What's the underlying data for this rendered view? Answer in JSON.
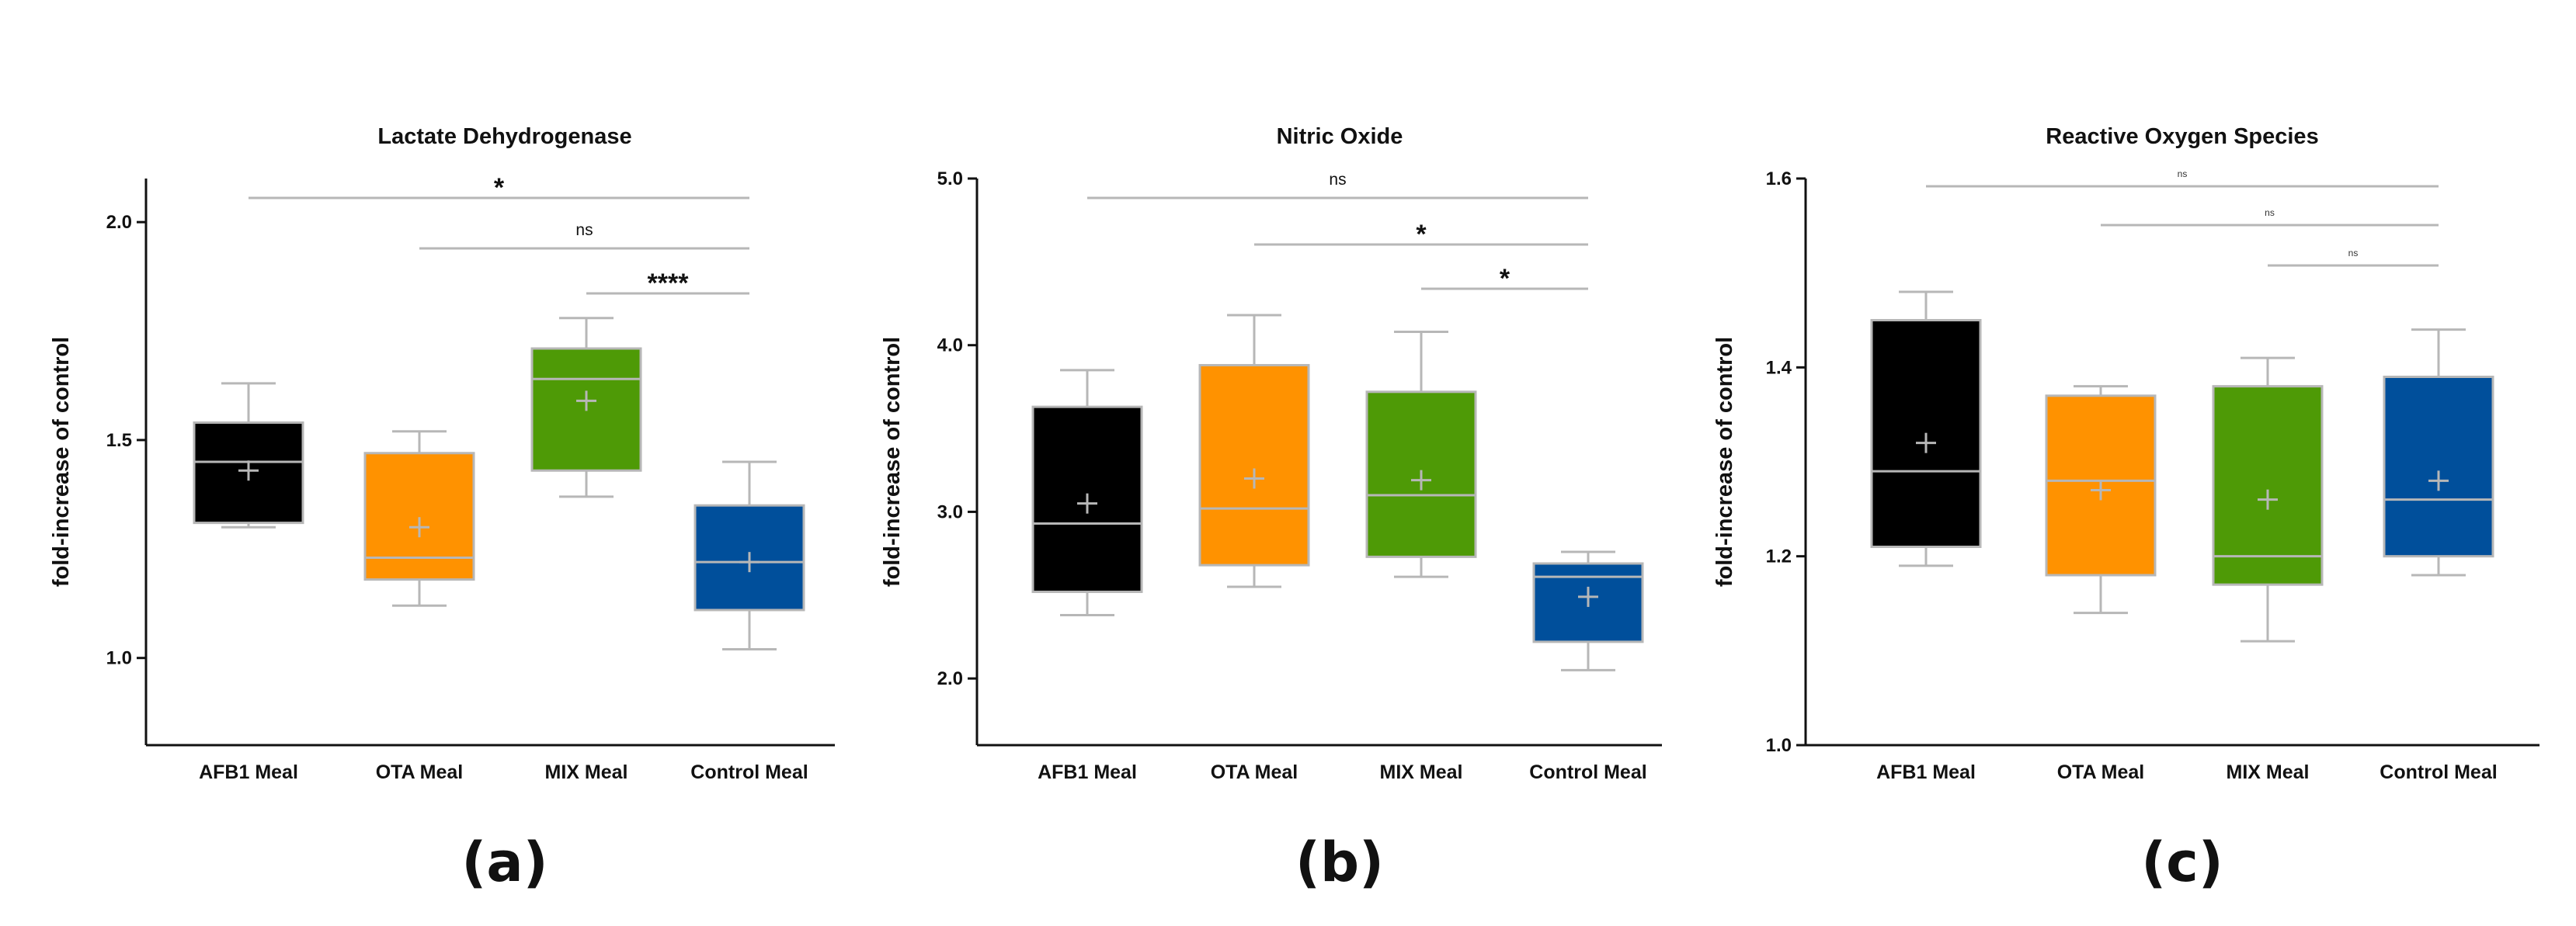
{
  "chart_data": [
    {
      "type": "box",
      "panel_label": "(a)",
      "title": "Lactate Dehydrogenase",
      "ylabel": "fold-increase of control",
      "ylim": [
        0.8,
        2.1
      ],
      "yticks": [
        1.0,
        1.5,
        2.0
      ],
      "ytick_labels": [
        "1.0",
        "1.5",
        "2.0"
      ],
      "categories": [
        "AFB1 Meal",
        "OTA Meal",
        "MIX Meal",
        "Control Meal"
      ],
      "colors": [
        "#000000",
        "#FF9200",
        "#4E9A06",
        "#004F9B"
      ],
      "boxes": [
        {
          "min": 1.3,
          "q1": 1.31,
          "median": 1.45,
          "q3": 1.54,
          "max": 1.63,
          "mean": 1.43
        },
        {
          "min": 1.12,
          "q1": 1.18,
          "median": 1.23,
          "q3": 1.47,
          "max": 1.52,
          "mean": 1.3
        },
        {
          "min": 1.37,
          "q1": 1.43,
          "median": 1.64,
          "q3": 1.71,
          "max": 1.78,
          "mean": 1.59
        },
        {
          "min": 1.02,
          "q1": 1.11,
          "median": 1.22,
          "q3": 1.35,
          "max": 1.45,
          "mean": 1.22
        }
      ],
      "comparisons": [
        {
          "from": 0,
          "to": 3,
          "label": "*",
          "level": 1.05
        },
        {
          "from": 1,
          "to": 3,
          "label": "ns",
          "level": 0.65
        },
        {
          "from": 2,
          "to": 3,
          "label": "****",
          "level": 0.25
        }
      ]
    },
    {
      "type": "box",
      "panel_label": "(b)",
      "title": "Nitric Oxide",
      "ylabel": "fold-increase of control",
      "ylim": [
        1.6,
        5.0
      ],
      "yticks": [
        2.0,
        3.0,
        4.0,
        5.0
      ],
      "ytick_labels": [
        "2.0",
        "3.0",
        "4.0",
        "5.0"
      ],
      "categories": [
        "AFB1 Meal",
        "OTA Meal",
        "MIX Meal",
        "Control Meal"
      ],
      "colors": [
        "#000000",
        "#FF9200",
        "#4E9A06",
        "#004F9B"
      ],
      "boxes": [
        {
          "min": 2.38,
          "q1": 2.52,
          "median": 2.93,
          "q3": 3.63,
          "max": 3.85,
          "mean": 3.05
        },
        {
          "min": 2.55,
          "q1": 2.68,
          "median": 3.02,
          "q3": 3.88,
          "max": 4.18,
          "mean": 3.2
        },
        {
          "min": 2.61,
          "q1": 2.73,
          "median": 3.1,
          "q3": 3.72,
          "max": 4.08,
          "mean": 3.19
        },
        {
          "min": 2.05,
          "q1": 2.22,
          "median": 2.61,
          "q3": 2.69,
          "max": 2.76,
          "mean": 2.49
        }
      ],
      "comparisons": [
        {
          "from": 0,
          "to": 3,
          "label": "ns",
          "level": 0.88
        },
        {
          "from": 1,
          "to": 3,
          "label": "*",
          "level": 0.6
        },
        {
          "from": 2,
          "to": 3,
          "label": "*",
          "level": 0.35
        }
      ]
    },
    {
      "type": "box",
      "panel_label": "(c)",
      "title": "Reactive Oxygen Species",
      "ylabel": "fold-increase of control",
      "ylim": [
        1.0,
        1.6
      ],
      "yticks": [
        1.0,
        1.2,
        1.4,
        1.6
      ],
      "ytick_labels": [
        "1.0",
        "1.2",
        "1.4",
        "1.6"
      ],
      "categories": [
        "AFB1 Meal",
        "OTA Meal",
        "MIX Meal",
        "Control Meal"
      ],
      "colors": [
        "#000000",
        "#FF9200",
        "#4E9A06",
        "#004F9B"
      ],
      "boxes": [
        {
          "min": 1.19,
          "q1": 1.21,
          "median": 1.29,
          "q3": 1.45,
          "max": 1.48,
          "mean": 1.32
        },
        {
          "min": 1.14,
          "q1": 1.18,
          "median": 1.28,
          "q3": 1.37,
          "max": 1.38,
          "mean": 1.27
        },
        {
          "min": 1.11,
          "q1": 1.17,
          "median": 1.2,
          "q3": 1.38,
          "max": 1.41,
          "mean": 1.26
        },
        {
          "min": 1.18,
          "q1": 1.2,
          "median": 1.26,
          "q3": 1.39,
          "max": 1.44,
          "mean": 1.28
        }
      ],
      "comparisons": [
        {
          "from": 0,
          "to": 3,
          "label": "ns",
          "level": 0.59
        },
        {
          "from": 1,
          "to": 3,
          "label": "ns",
          "level": 0.55
        },
        {
          "from": 2,
          "to": 3,
          "label": "ns",
          "level": 0.51
        }
      ]
    }
  ]
}
